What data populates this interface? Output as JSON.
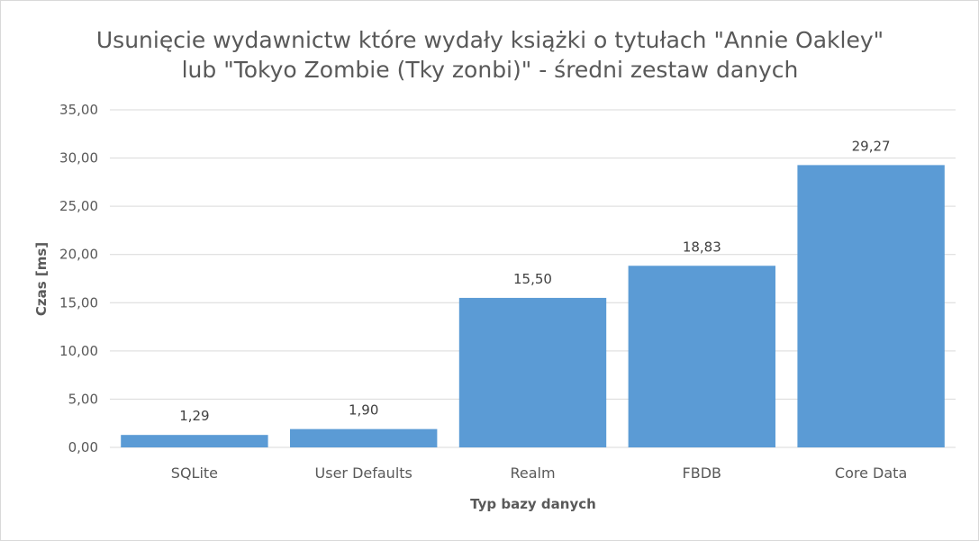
{
  "chart_data": {
    "type": "bar",
    "title_lines": [
      "Usunięcie wydawnictw które wydały książki o tytułach \"Annie Oakley\"",
      "lub \"Tokyo Zombie (Tky zonbi)\" - średni zestaw danych"
    ],
    "xlabel": "Typ bazy danych",
    "ylabel": "Czas [ms]",
    "categories": [
      "SQLite",
      "User Defaults",
      "Realm",
      "FBDB",
      "Core Data"
    ],
    "values": [
      1.29,
      1.9,
      15.5,
      18.83,
      29.27
    ],
    "value_labels": [
      "1,29",
      "1,90",
      "15,50",
      "18,83",
      "29,27"
    ],
    "ylim": [
      0,
      35
    ],
    "y_ticks": [
      0,
      5,
      10,
      15,
      20,
      25,
      30,
      35
    ],
    "y_tick_labels": [
      "0,00",
      "5,00",
      "10,00",
      "15,00",
      "20,00",
      "25,00",
      "30,00",
      "35,00"
    ],
    "grid": true,
    "legend": "none",
    "bar_color": "#5b9bd5"
  }
}
